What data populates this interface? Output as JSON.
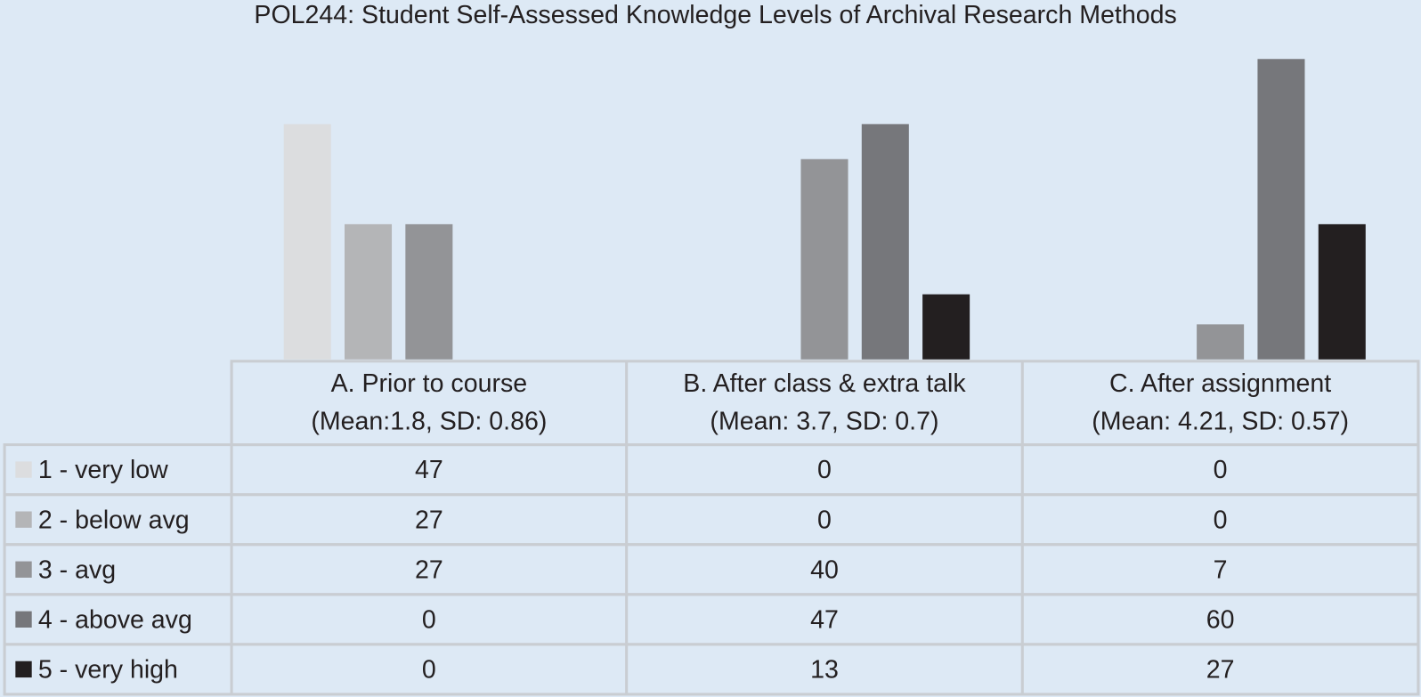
{
  "chart_data": {
    "type": "bar",
    "title": "POL244: Student Self-Assessed Knowledge Levels of Archival Research Methods",
    "categories": [
      "A. Prior to  course",
      "B. After  class & extra talk",
      "C. After assignment"
    ],
    "category_subtitles": [
      "(Mean:1.8, SD: 0.86)",
      "(Mean: 3.7, SD: 0.7)",
      "(Mean: 4.21, SD: 0.57)"
    ],
    "series": [
      {
        "name": "1 - very low",
        "color": "#dcdddf",
        "values": [
          47,
          0,
          0
        ]
      },
      {
        "name": "2 - below avg",
        "color": "#b4b5b7",
        "values": [
          27,
          0,
          0
        ]
      },
      {
        "name": "3 - avg",
        "color": "#939497",
        "values": [
          27,
          40,
          7
        ]
      },
      {
        "name": "4 - above avg",
        "color": "#76777b",
        "values": [
          0,
          47,
          60
        ]
      },
      {
        "name": "5 - very high",
        "color": "#231f20",
        "values": [
          0,
          13,
          27
        ]
      }
    ],
    "ylim": [
      0,
      60
    ]
  }
}
